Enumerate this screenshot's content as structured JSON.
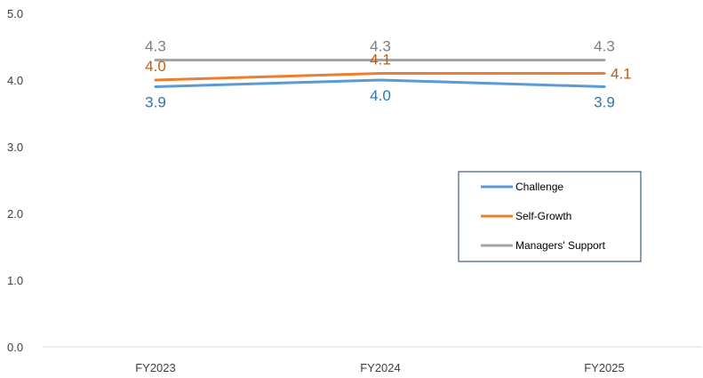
{
  "chart_data": {
    "type": "line",
    "title": "",
    "xlabel": "",
    "ylabel": "",
    "categories": [
      "FY2023",
      "FY2024",
      "FY2025"
    ],
    "ylim": [
      0,
      5
    ],
    "yticks": [
      "0.0",
      "1.0",
      "2.0",
      "3.0",
      "4.0",
      "5.0"
    ],
    "grid": false,
    "legend_position": "right",
    "series": [
      {
        "name": "Challenge",
        "color": "#5b9bd5",
        "values": [
          3.9,
          4.0,
          3.9
        ],
        "labels": [
          "3.9",
          "4.0",
          "3.9"
        ],
        "label_pos": "below"
      },
      {
        "name": "Self-Growth",
        "color": "#ed7d31",
        "values": [
          4.0,
          4.1,
          4.1
        ],
        "labels": [
          "4.0",
          "4.1",
          "4.1"
        ],
        "label_pos": "above"
      },
      {
        "name": "Managers' Support",
        "color": "#a5a5a5",
        "values": [
          4.3,
          4.3,
          4.3
        ],
        "labels": [
          "4.3",
          "4.3",
          "4.3"
        ],
        "label_pos": "above"
      }
    ]
  }
}
